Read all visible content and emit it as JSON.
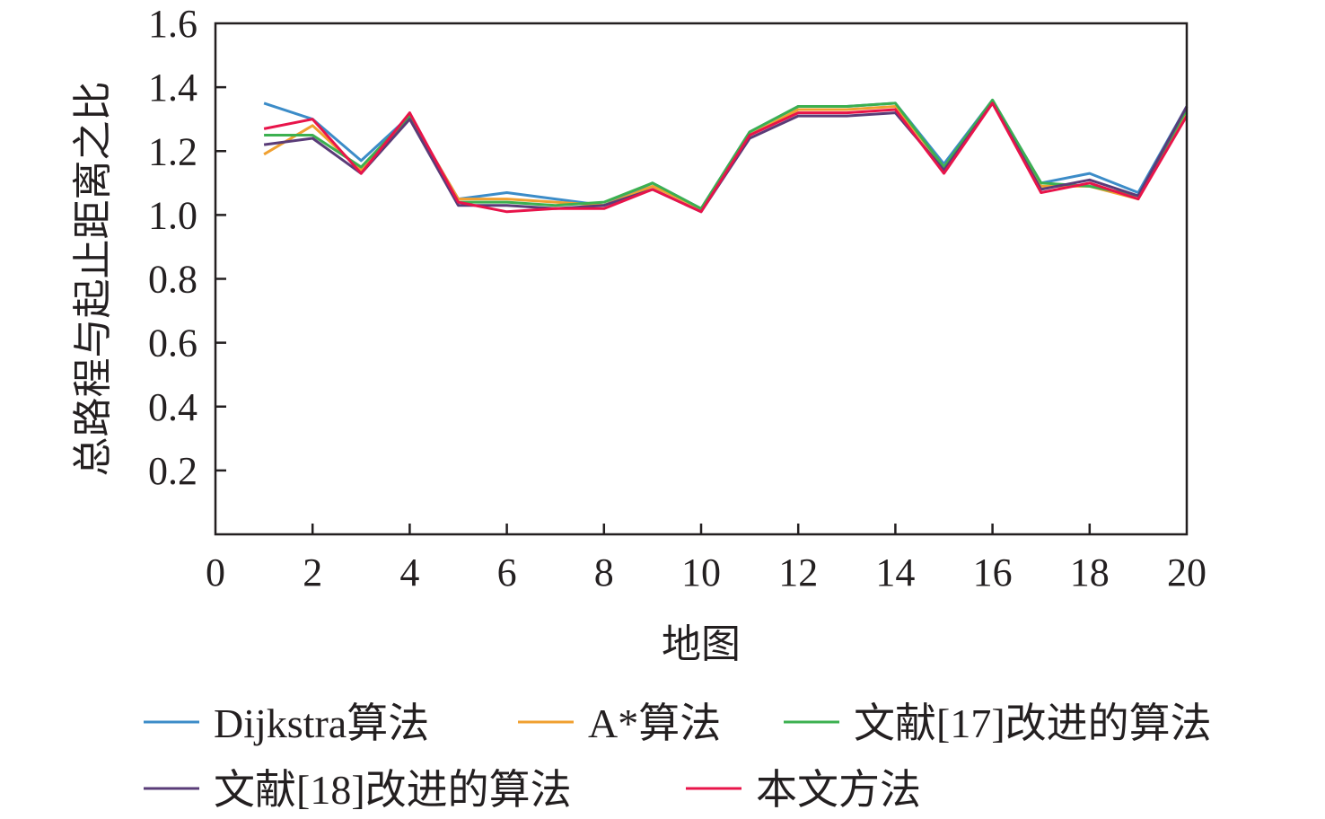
{
  "chart_data": {
    "type": "line",
    "xlabel": "地图",
    "ylabel": "总路程与起止距离之比",
    "xlim": [
      0,
      20
    ],
    "ylim": [
      0,
      1.6
    ],
    "x_ticks": [
      "0",
      "2",
      "4",
      "6",
      "8",
      "10",
      "12",
      "14",
      "16",
      "18",
      "20"
    ],
    "y_ticks": [
      "0.2",
      "0.4",
      "0.6",
      "0.8",
      "1.0",
      "1.2",
      "1.4",
      "1.6"
    ],
    "grid": false,
    "legend_position": "bottom",
    "x": [
      1,
      2,
      3,
      4,
      5,
      6,
      7,
      8,
      9,
      10,
      11,
      12,
      13,
      14,
      15,
      16,
      17,
      18,
      19,
      20
    ],
    "series": [
      {
        "name": "Dijkstra算法",
        "color": "#3c8cc8",
        "values": [
          1.35,
          1.3,
          1.17,
          1.31,
          1.05,
          1.07,
          1.05,
          1.03,
          1.1,
          1.02,
          1.26,
          1.34,
          1.34,
          1.35,
          1.16,
          1.36,
          1.1,
          1.13,
          1.07,
          1.34
        ]
      },
      {
        "name": "A*算法",
        "color": "#f0a030",
        "values": [
          1.19,
          1.28,
          1.14,
          1.31,
          1.05,
          1.05,
          1.04,
          1.03,
          1.09,
          1.02,
          1.25,
          1.33,
          1.33,
          1.34,
          1.15,
          1.35,
          1.09,
          1.09,
          1.05,
          1.32
        ]
      },
      {
        "name": "文献[17]改进的算法",
        "color": "#3cb050",
        "values": [
          1.25,
          1.25,
          1.15,
          1.31,
          1.04,
          1.04,
          1.03,
          1.04,
          1.1,
          1.02,
          1.26,
          1.34,
          1.34,
          1.35,
          1.15,
          1.36,
          1.1,
          1.09,
          1.06,
          1.33
        ]
      },
      {
        "name": "文献[18]改进的算法",
        "color": "#5a3c78",
        "values": [
          1.22,
          1.24,
          1.13,
          1.3,
          1.03,
          1.03,
          1.02,
          1.03,
          1.08,
          1.01,
          1.24,
          1.31,
          1.31,
          1.32,
          1.14,
          1.35,
          1.08,
          1.11,
          1.06,
          1.34
        ]
      },
      {
        "name": "本文方法",
        "color": "#e8144a",
        "values": [
          1.27,
          1.3,
          1.13,
          1.32,
          1.04,
          1.01,
          1.02,
          1.02,
          1.08,
          1.01,
          1.25,
          1.32,
          1.32,
          1.33,
          1.13,
          1.35,
          1.07,
          1.1,
          1.05,
          1.31
        ]
      }
    ]
  }
}
